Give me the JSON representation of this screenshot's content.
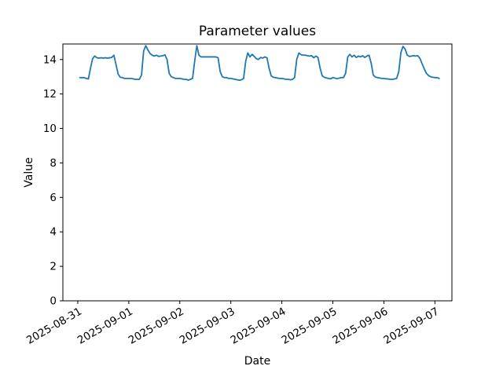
{
  "figure": {
    "background_color": "#ffffff"
  },
  "chart_data": {
    "type": "line",
    "title": "Parameter values",
    "xlabel": "Date",
    "ylabel": "Value",
    "grid": false,
    "legend_position": "none",
    "line_color": "#1f77b4",
    "axis_color": "#000000",
    "ylim": [
      0,
      14.9
    ],
    "xlim_hours_from_2025_08_31": [
      -7,
      176
    ],
    "y_ticks": [
      0,
      2,
      4,
      6,
      8,
      10,
      12,
      14
    ],
    "x_ticks": [
      {
        "label": "2025-08-31",
        "hour": 0
      },
      {
        "label": "2025-09-01",
        "hour": 24
      },
      {
        "label": "2025-09-02",
        "hour": 48
      },
      {
        "label": "2025-09-03",
        "hour": 72
      },
      {
        "label": "2025-09-04",
        "hour": 96
      },
      {
        "label": "2025-09-05",
        "hour": 120
      },
      {
        "label": "2025-09-06",
        "hour": 144
      },
      {
        "label": "2025-09-07",
        "hour": 168
      }
    ],
    "series": [
      {
        "name": "parameter-values",
        "start": "2025-08-31 01:00",
        "start_hour_offset": 1,
        "step_hours": 1,
        "values": [
          12.95,
          12.95,
          12.95,
          12.9,
          12.87,
          13.5,
          14.05,
          14.2,
          14.1,
          14.08,
          14.1,
          14.08,
          14.1,
          14.08,
          14.1,
          14.12,
          14.25,
          13.7,
          13.15,
          12.97,
          12.95,
          12.9,
          12.9,
          12.9,
          12.9,
          12.88,
          12.85,
          12.85,
          12.85,
          13.1,
          14.5,
          14.8,
          14.55,
          14.35,
          14.25,
          14.2,
          14.25,
          14.18,
          14.2,
          14.22,
          14.27,
          14.0,
          13.2,
          13.0,
          12.95,
          12.9,
          12.9,
          12.9,
          12.88,
          12.85,
          12.85,
          12.8,
          12.85,
          12.9,
          13.9,
          14.8,
          14.25,
          14.15,
          14.15,
          14.15,
          14.15,
          14.15,
          14.15,
          14.15,
          14.15,
          14.1,
          13.3,
          13.0,
          12.95,
          12.95,
          12.9,
          12.9,
          12.88,
          12.85,
          12.82,
          12.8,
          12.82,
          12.9,
          13.9,
          14.38,
          14.15,
          14.3,
          14.18,
          14.05,
          14.0,
          14.12,
          14.08,
          14.15,
          14.1,
          13.5,
          13.05,
          12.97,
          12.95,
          12.92,
          12.9,
          12.9,
          12.88,
          12.85,
          12.85,
          12.82,
          12.85,
          12.95,
          14.0,
          14.38,
          14.28,
          14.25,
          14.25,
          14.22,
          14.2,
          14.22,
          14.1,
          14.2,
          14.12,
          13.5,
          13.05,
          12.97,
          12.93,
          12.9,
          12.88,
          12.95,
          12.92,
          12.88,
          12.92,
          12.95,
          12.95,
          13.2,
          14.15,
          14.3,
          14.15,
          14.25,
          14.12,
          14.2,
          14.15,
          14.22,
          14.12,
          14.2,
          14.25,
          13.8,
          13.1,
          12.98,
          12.95,
          12.93,
          12.9,
          12.9,
          12.88,
          12.87,
          12.85,
          12.85,
          12.87,
          12.9,
          13.3,
          14.4,
          14.76,
          14.6,
          14.25,
          14.18,
          14.2,
          14.22,
          14.2,
          14.22,
          14.05,
          13.75,
          13.45,
          13.2,
          13.07,
          13.0,
          12.97,
          12.95,
          12.95,
          12.9
        ]
      }
    ]
  }
}
